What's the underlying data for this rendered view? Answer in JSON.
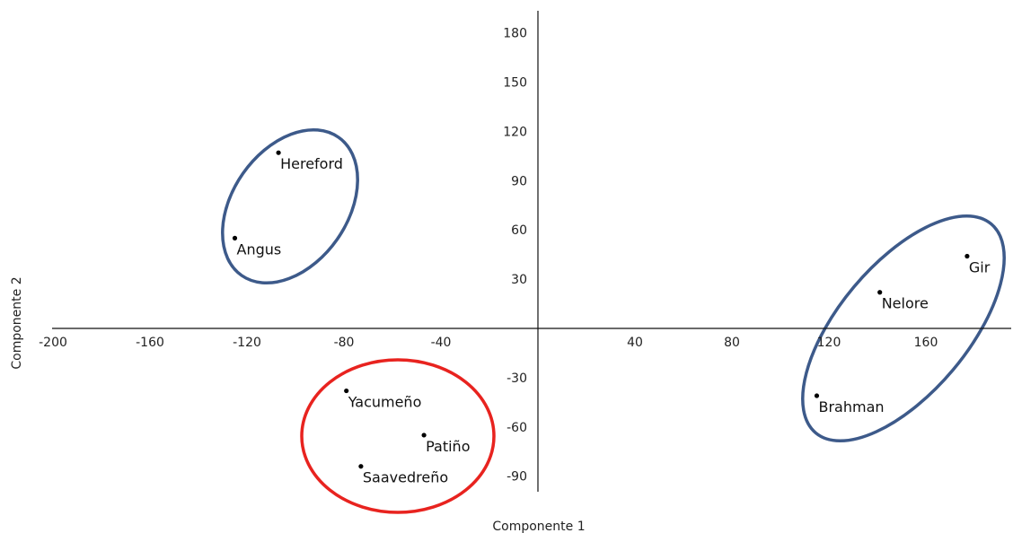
{
  "chart_data": {
    "type": "scatter",
    "xlabel": "Componente 1",
    "ylabel": "Componente 2",
    "xlim": [
      -200,
      195
    ],
    "ylim": [
      -100,
      195
    ],
    "x_ticks": [
      -200,
      -160,
      -120,
      -80,
      -40,
      40,
      80,
      120,
      160
    ],
    "y_ticks": [
      -90,
      -60,
      -30,
      30,
      60,
      90,
      120,
      150,
      180
    ],
    "grid": false,
    "points": [
      {
        "label": "Hereford",
        "x": -107,
        "y": 107
      },
      {
        "label": "Angus",
        "x": -125,
        "y": 55
      },
      {
        "label": "Gir",
        "x": 177,
        "y": 44
      },
      {
        "label": "Nelore",
        "x": 141,
        "y": 22
      },
      {
        "label": "Brahman",
        "x": 115,
        "y": -41
      },
      {
        "label": "Yacumeño",
        "x": -79,
        "y": -38
      },
      {
        "label": "Patiño",
        "x": -47,
        "y": -65
      },
      {
        "label": "Saavedreño",
        "x": -73,
        "y": -84
      }
    ],
    "groups": [
      {
        "members": [
          "Hereford",
          "Angus"
        ],
        "color": "#3d5a8a"
      },
      {
        "members": [
          "Gir",
          "Nelore",
          "Brahman"
        ],
        "color": "#3d5a8a"
      },
      {
        "members": [
          "Yacumeño",
          "Patiño",
          "Saavedreño"
        ],
        "color": "#e8231f"
      }
    ]
  }
}
